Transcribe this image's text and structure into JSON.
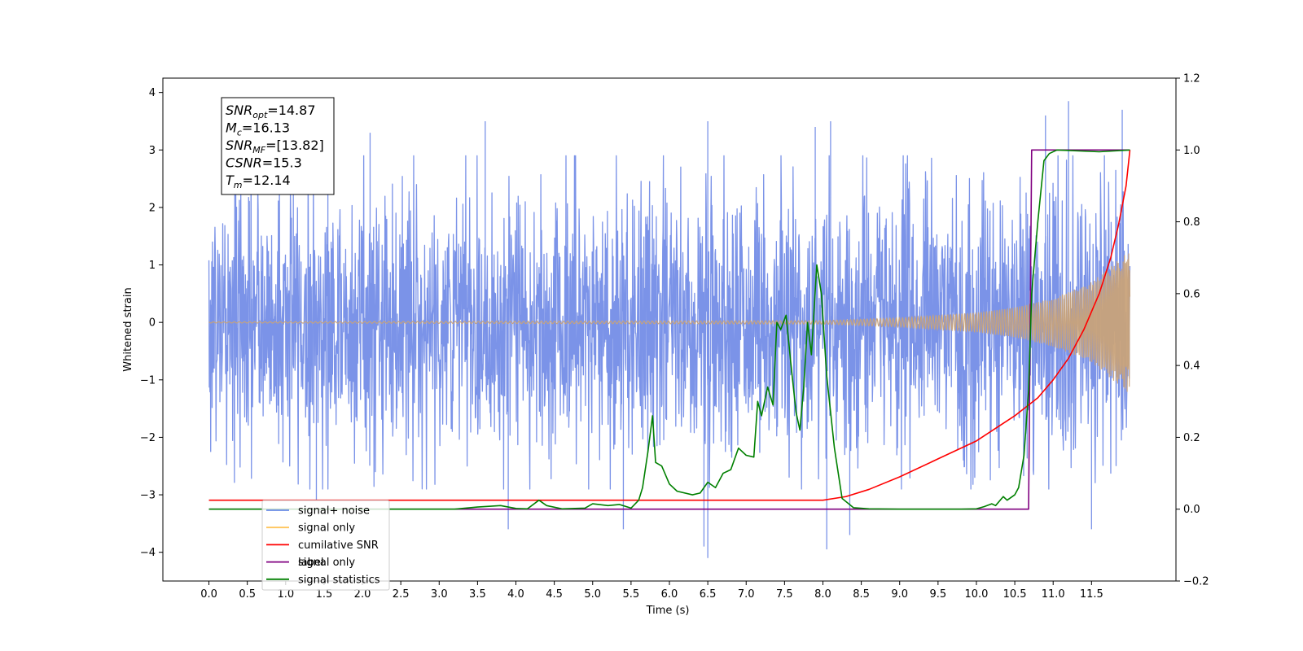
{
  "chart_data": {
    "type": "line",
    "xlabel": "Time (s)",
    "ylabel": "Whitened strain",
    "xlim": [
      -0.6,
      12.6
    ],
    "ylim": [
      -4.5,
      4.25
    ],
    "y2lim": [
      -0.2,
      1.2
    ],
    "grid": false,
    "legend_position": "lower-left",
    "x_ticks": [
      "0.0",
      "0.5",
      "1.0",
      "1.5",
      "2.0",
      "2.5",
      "3.0",
      "3.5",
      "4.0",
      "4.5",
      "5.0",
      "5.5",
      "6.0",
      "6.5",
      "7.0",
      "7.5",
      "8.0",
      "8.5",
      "9.0",
      "9.5",
      "10.0",
      "10.5",
      "11.0",
      "11.5"
    ],
    "y_ticks": [
      "4",
      "3",
      "2",
      "1",
      "0",
      "−1",
      "−2",
      "−3",
      "−4"
    ],
    "y2_ticks": [
      "1.2",
      "1.0",
      "0.8",
      "0.6",
      "0.4",
      "0.2",
      "0.0",
      "−0.2"
    ],
    "info_box": [
      {
        "sym": "SNR",
        "sub": "opt",
        "value": "=14.87"
      },
      {
        "sym": "M",
        "sub": "c",
        "value": "=16.13"
      },
      {
        "sym": "SNR",
        "sub": "MF",
        "value": "=[13.82]"
      },
      {
        "sym": "CSNR",
        "sub": "",
        "value": "=15.3"
      },
      {
        "sym": "T",
        "sub": "m",
        "value": "=12.14"
      }
    ],
    "legend": [
      {
        "label": "signal+ noise",
        "color": "#6a8be6"
      },
      {
        "label": "signal only",
        "color": "#ffc55c"
      },
      {
        "label": "cumilative SNR",
        "color": "#ff0000"
      },
      {
        "label": "label",
        "color": "#800080"
      },
      {
        "label": "signal statistics",
        "color": "#008000"
      }
    ],
    "obscured_legend_text": "signal only",
    "colors": {
      "noise": "#7b93e8",
      "signal": "#c8a27a",
      "csnr": "#ff0000",
      "label": "#800080",
      "stats": "#008000"
    },
    "series": [
      {
        "name": "signal+ noise",
        "axis": "left",
        "x_range": [
          0.0,
          12.0
        ],
        "typical_range": [
          -2.1,
          2.0
        ],
        "peaks": [
          {
            "x": 0.35,
            "y": 3.3
          },
          {
            "x": 1.1,
            "y": 3.4
          },
          {
            "x": 1.55,
            "y": 3.3
          },
          {
            "x": 2.1,
            "y": 3.3
          },
          {
            "x": 3.6,
            "y": 3.5
          },
          {
            "x": 6.5,
            "y": 3.5
          },
          {
            "x": 7.9,
            "y": 3.4
          },
          {
            "x": 8.1,
            "y": 3.5
          },
          {
            "x": 10.9,
            "y": 3.6
          },
          {
            "x": 11.2,
            "y": 3.85
          },
          {
            "x": 11.9,
            "y": 3.7
          }
        ],
        "troughs": [
          {
            "x": 1.4,
            "y": -3.1
          },
          {
            "x": 3.9,
            "y": -3.6
          },
          {
            "x": 5.4,
            "y": -3.6
          },
          {
            "x": 6.45,
            "y": -3.9
          },
          {
            "x": 6.5,
            "y": -4.1
          },
          {
            "x": 8.05,
            "y": -3.95
          },
          {
            "x": 8.35,
            "y": -3.7
          },
          {
            "x": 11.5,
            "y": -3.6
          }
        ]
      },
      {
        "name": "signal only",
        "axis": "left",
        "x_range": [
          0.0,
          12.0
        ],
        "amplitude": [
          {
            "x": 0.0,
            "y": 0.01
          },
          {
            "x": 8.0,
            "y": 0.03
          },
          {
            "x": 9.0,
            "y": 0.08
          },
          {
            "x": 10.0,
            "y": 0.17
          },
          {
            "x": 10.5,
            "y": 0.26
          },
          {
            "x": 11.0,
            "y": 0.42
          },
          {
            "x": 11.5,
            "y": 0.7
          },
          {
            "x": 12.0,
            "y": 1.25
          }
        ]
      },
      {
        "name": "cumilative SNR",
        "axis": "right",
        "points": [
          [
            0.0,
            0.025
          ],
          [
            8.0,
            0.025
          ],
          [
            8.3,
            0.035
          ],
          [
            8.6,
            0.055
          ],
          [
            9.0,
            0.09
          ],
          [
            9.5,
            0.14
          ],
          [
            10.0,
            0.19
          ],
          [
            10.5,
            0.26
          ],
          [
            10.8,
            0.31
          ],
          [
            11.0,
            0.36
          ],
          [
            11.2,
            0.42
          ],
          [
            11.4,
            0.5
          ],
          [
            11.6,
            0.6
          ],
          [
            11.75,
            0.7
          ],
          [
            11.85,
            0.79
          ],
          [
            11.95,
            0.9
          ],
          [
            12.0,
            1.0
          ]
        ]
      },
      {
        "name": "label",
        "axis": "right",
        "points": [
          [
            0.0,
            0.0
          ],
          [
            10.68,
            0.0
          ],
          [
            10.72,
            1.0
          ],
          [
            12.0,
            1.0
          ]
        ]
      },
      {
        "name": "signal statistics",
        "axis": "right",
        "points": [
          [
            0.0,
            0.0
          ],
          [
            3.2,
            0.0
          ],
          [
            3.5,
            0.006
          ],
          [
            3.8,
            0.01
          ],
          [
            4.0,
            0.002
          ],
          [
            4.15,
            0.001
          ],
          [
            4.3,
            0.025
          ],
          [
            4.4,
            0.01
          ],
          [
            4.6,
            0.001
          ],
          [
            4.9,
            0.003
          ],
          [
            5.0,
            0.015
          ],
          [
            5.2,
            0.01
          ],
          [
            5.35,
            0.013
          ],
          [
            5.5,
            0.003
          ],
          [
            5.6,
            0.025
          ],
          [
            5.65,
            0.06
          ],
          [
            5.72,
            0.16
          ],
          [
            5.78,
            0.26
          ],
          [
            5.82,
            0.13
          ],
          [
            5.9,
            0.12
          ],
          [
            6.0,
            0.07
          ],
          [
            6.1,
            0.05
          ],
          [
            6.3,
            0.04
          ],
          [
            6.4,
            0.045
          ],
          [
            6.5,
            0.075
          ],
          [
            6.6,
            0.06
          ],
          [
            6.7,
            0.1
          ],
          [
            6.8,
            0.11
          ],
          [
            6.9,
            0.17
          ],
          [
            7.0,
            0.15
          ],
          [
            7.1,
            0.145
          ],
          [
            7.15,
            0.3
          ],
          [
            7.2,
            0.26
          ],
          [
            7.28,
            0.34
          ],
          [
            7.35,
            0.29
          ],
          [
            7.4,
            0.52
          ],
          [
            7.45,
            0.5
          ],
          [
            7.52,
            0.54
          ],
          [
            7.58,
            0.41
          ],
          [
            7.65,
            0.27
          ],
          [
            7.7,
            0.22
          ],
          [
            7.75,
            0.34
          ],
          [
            7.8,
            0.52
          ],
          [
            7.85,
            0.43
          ],
          [
            7.92,
            0.68
          ],
          [
            7.98,
            0.6
          ],
          [
            8.05,
            0.37
          ],
          [
            8.15,
            0.17
          ],
          [
            8.25,
            0.03
          ],
          [
            8.4,
            0.004
          ],
          [
            8.6,
            0.001
          ],
          [
            9.0,
            0.0
          ],
          [
            9.8,
            0.0
          ],
          [
            10.0,
            0.001
          ],
          [
            10.1,
            0.007
          ],
          [
            10.2,
            0.015
          ],
          [
            10.25,
            0.01
          ],
          [
            10.35,
            0.035
          ],
          [
            10.4,
            0.025
          ],
          [
            10.5,
            0.04
          ],
          [
            10.55,
            0.06
          ],
          [
            10.62,
            0.15
          ],
          [
            10.68,
            0.33
          ],
          [
            10.72,
            0.6
          ],
          [
            10.8,
            0.8
          ],
          [
            10.88,
            0.97
          ],
          [
            10.95,
            0.99
          ],
          [
            11.05,
            1.0
          ],
          [
            11.6,
            0.995
          ],
          [
            12.0,
            1.0
          ]
        ]
      }
    ]
  }
}
